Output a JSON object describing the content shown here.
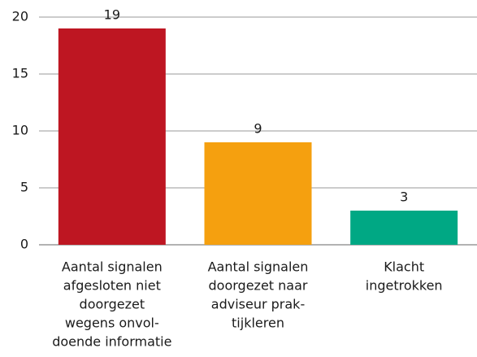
{
  "chart_data": {
    "type": "bar",
    "categories": [
      [
        "Aantal signalen",
        "afgesloten niet",
        "doorgezet",
        "wegens onvol-",
        "doende informatie"
      ],
      [
        "Aantal signalen",
        "doorgezet naar",
        "adviseur prak-",
        "tijkleren"
      ],
      [
        "Klacht",
        "ingetrokken"
      ]
    ],
    "values": [
      19,
      9,
      3
    ],
    "colors": [
      "#be1622",
      "#f5a00f",
      "#00a884"
    ],
    "ylim": [
      0,
      20
    ],
    "yticks": [
      0,
      5,
      10,
      15,
      20
    ],
    "grid": true
  }
}
